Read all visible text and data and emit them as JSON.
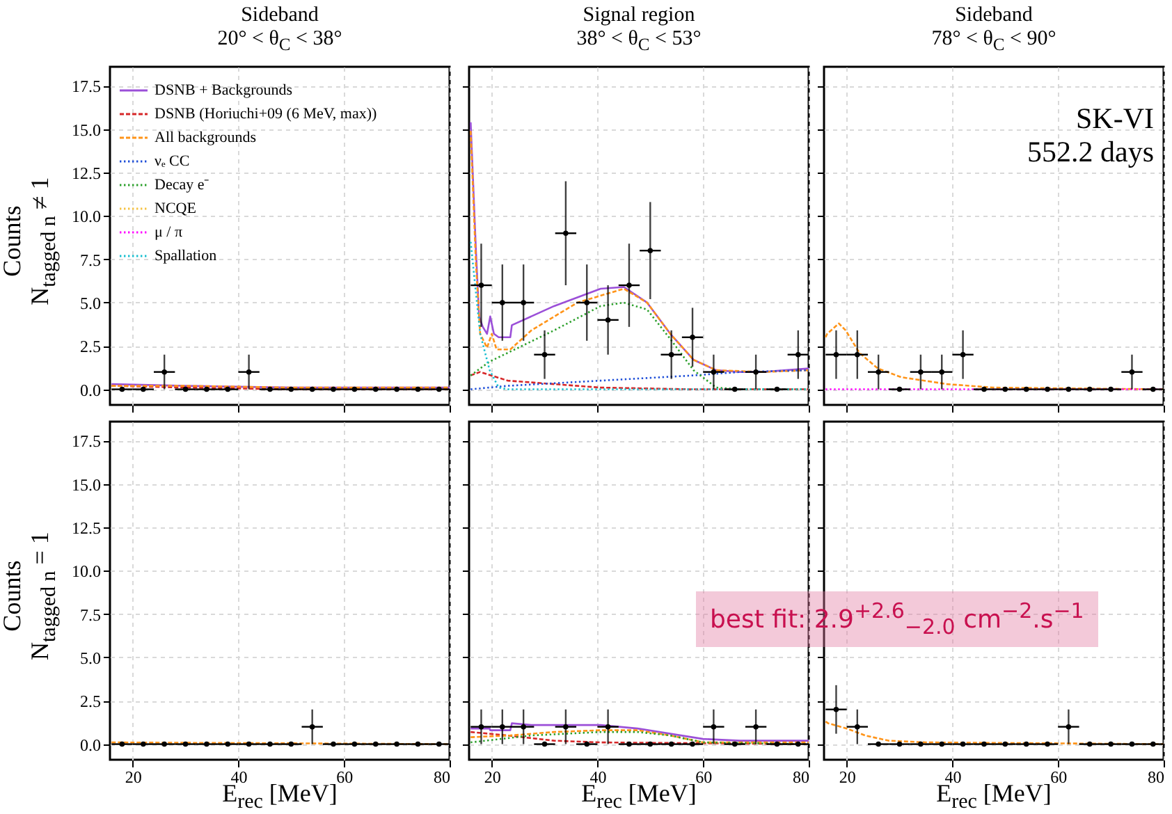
{
  "chart_data": [
    {
      "type": "line",
      "title": "Sideband",
      "subtitle": "20° < θ$_{C}$ < 38°",
      "ylabel": "Counts\nN$_{tagged n}$ ≠ 1",
      "xlim": [
        15.7,
        80
      ],
      "ylim": [
        -0.9,
        18.6
      ],
      "xticks": [
        20,
        40,
        60,
        80
      ],
      "yticks": [
        {
          "value": 0,
          "label": "0.0"
        },
        2.5,
        {
          "value": 5,
          "label": "5.0"
        },
        7.5,
        {
          "value": 10,
          "label": "10.0"
        },
        12.5,
        {
          "value": 15,
          "label": "15.0"
        },
        17.5
      ],
      "tick_labels": "y",
      "grid": true,
      "legend": "top left",
      "series": [
        {
          "name": "DSNB + Backgrounds",
          "type": "line",
          "color": "#9b4fd8",
          "line_style": "solid",
          "x": [
            16,
            30,
            50,
            80
          ],
          "values": [
            0.3,
            0.2,
            0.1,
            0.1
          ]
        },
        {
          "name": "DSNB (Horiuchi+09 (6 MeV, max))",
          "type": "line",
          "color": "#d62728",
          "line_style": "dashed",
          "x": [
            16,
            30,
            50,
            80
          ],
          "values": [
            0.2,
            0.1,
            0,
            0
          ]
        },
        {
          "name": "All backgrounds",
          "type": "line",
          "color": "#ff9419",
          "line_style": "dashed",
          "x": [
            16,
            30,
            50,
            80
          ],
          "values": [
            0.2,
            0.2,
            0.1,
            0.1
          ]
        },
        {
          "name": "νₑ CC",
          "type": "line",
          "color": "#1f4fd8",
          "line_style": "dotted"
        },
        {
          "name": "Decay e⁻",
          "type": "line",
          "color": "#2ca02c",
          "line_style": "dotted"
        },
        {
          "name": "NCQE",
          "type": "line",
          "color": "#f5c242",
          "line_style": "dotted"
        },
        {
          "name": "μ / π",
          "type": "line",
          "color": "#ff00ff",
          "line_style": "dotted"
        },
        {
          "name": "Spallation",
          "type": "line",
          "color": "#17becf",
          "line_style": "dotted"
        },
        {
          "type": "scatter",
          "color": "#000000",
          "marker": "circle",
          "x": [
            18,
            22,
            26,
            30,
            34,
            38,
            42,
            46,
            50,
            54,
            58,
            62,
            66,
            70,
            74,
            78
          ],
          "values": [
            0,
            0,
            1,
            0,
            0,
            0,
            1,
            0,
            0,
            0,
            0,
            0,
            0,
            0,
            0,
            0
          ],
          "errors": [
            null,
            null,
            1,
            null,
            null,
            null,
            1,
            null,
            null,
            null,
            null,
            null,
            null,
            null,
            null,
            null
          ],
          "xerrors": [
            2,
            2,
            2,
            2,
            2,
            2,
            2,
            2,
            2,
            2,
            2,
            2,
            2,
            2,
            2,
            2
          ]
        }
      ]
    },
    {
      "type": "line",
      "title": "Signal region",
      "subtitle": "38° < θ$_{C}$ < 53°",
      "xlim": [
        15.7,
        80
      ],
      "ylim": [
        -0.9,
        18.6
      ],
      "xticks": [
        20,
        40,
        60,
        80
      ],
      "yticks": [
        0,
        2.5,
        5,
        7.5,
        10,
        12.5,
        15,
        17.5
      ],
      "tick_labels": false,
      "grid": true,
      "series": [
        {
          "type": "line",
          "color": "#9b4fd8",
          "line_style": "solid",
          "x": [
            16,
            17,
            17.6,
            18.3,
            19.1,
            19.7,
            20.4,
            21.3,
            23.5,
            23.8,
            31.8,
            40.6,
            45,
            49.4,
            53.8,
            58.2,
            62.5,
            66.9,
            71.3,
            80
          ],
          "values": [
            15.4,
            8,
            4.2,
            3.6,
            3.2,
            4.2,
            3.2,
            3,
            3,
            3.7,
            4.8,
            5.8,
            5.9,
            5,
            3.2,
            1.7,
            1.1,
            1,
            1,
            1.2
          ]
        },
        {
          "type": "line",
          "color": "#d62728",
          "line_style": "dashed",
          "x": [
            16,
            17.8,
            23,
            31.8,
            40.6,
            58,
            80
          ],
          "values": [
            0.8,
            1,
            0.5,
            0.3,
            0.1,
            0,
            0
          ]
        },
        {
          "type": "line",
          "color": "#ff9419",
          "line_style": "dashed",
          "x": [
            16,
            17,
            17.8,
            19.1,
            20,
            20.9,
            23.5,
            27.5,
            36.2,
            45,
            49.4,
            53.8,
            58.2,
            62.5,
            71.3,
            80
          ],
          "values": [
            14.9,
            7.2,
            3.2,
            2.4,
            3.2,
            2.3,
            2.3,
            3.4,
            5,
            5.8,
            5,
            3.2,
            1.7,
            1.1,
            1,
            1.1
          ]
        },
        {
          "type": "line",
          "color": "#1f4fd8",
          "line_style": "dotted",
          "x": [
            16,
            23,
            40.6,
            58.2,
            67,
            80
          ],
          "values": [
            0,
            0.2,
            0.5,
            0.8,
            1,
            1.1
          ]
        },
        {
          "type": "line",
          "color": "#2ca02c",
          "line_style": "dotted",
          "x": [
            16,
            19.6,
            23,
            31.8,
            40.6,
            45,
            49.4,
            53.8,
            58.2,
            62.5,
            67,
            80
          ],
          "values": [
            0.8,
            1.6,
            2.1,
            3.4,
            4.8,
            5,
            4.6,
            2.9,
            1.1,
            0.1,
            0,
            0
          ]
        },
        {
          "type": "line",
          "color": "#17becf",
          "line_style": "dotted",
          "x": [
            16,
            17.8,
            19.6,
            21.3,
            23,
            80
          ],
          "values": [
            8.5,
            3.2,
            1.1,
            0.1,
            0,
            0
          ]
        },
        {
          "type": "scatter",
          "color": "#000000",
          "marker": "circle",
          "x": [
            18,
            22,
            26,
            30,
            34,
            38,
            42,
            46,
            50,
            54,
            58,
            62,
            66,
            70,
            74,
            78
          ],
          "values": [
            6,
            5,
            5,
            2,
            9,
            5,
            4,
            6,
            8,
            2,
            3,
            1,
            0,
            1,
            0,
            2
          ],
          "errors": [
            2.4,
            2.2,
            2.2,
            1.4,
            3,
            2.2,
            2,
            2.4,
            2.8,
            1.4,
            1.7,
            1,
            null,
            1,
            null,
            1.4
          ],
          "xerrors": [
            2,
            2,
            2,
            2,
            2,
            2,
            2,
            2,
            2,
            2,
            2,
            2,
            2,
            2,
            2,
            2
          ]
        }
      ]
    },
    {
      "type": "line",
      "title": "Sideband",
      "subtitle": "78° < θ$_{C}$ < 90°",
      "annotations": [
        "SK-VI",
        "552.2 days"
      ],
      "xlim": [
        15.7,
        80
      ],
      "ylim": [
        -0.9,
        18.6
      ],
      "xticks": [
        20,
        40,
        60,
        80
      ],
      "yticks": [
        0,
        2.5,
        5,
        7.5,
        10,
        12.5,
        15,
        17.5
      ],
      "tick_labels": false,
      "grid": true,
      "series": [
        {
          "type": "line",
          "color": "#ff9419",
          "line_style": "dashed",
          "x": [
            16,
            16.3,
            18.5,
            19.8,
            22.4,
            25.9,
            30.3,
            39,
            47.7,
            80
          ],
          "values": [
            3,
            3.2,
            3.8,
            3.4,
            2.1,
            1.2,
            0.7,
            0.3,
            0.1,
            0
          ]
        },
        {
          "type": "line",
          "color": "#ff00ff",
          "line_style": "dotted",
          "x": [
            16,
            80
          ],
          "values": [
            0,
            0
          ]
        },
        {
          "type": "scatter",
          "color": "#000000",
          "marker": "circle",
          "x": [
            18,
            22,
            26,
            30,
            34,
            38,
            42,
            46,
            50,
            54,
            58,
            62,
            66,
            70,
            74,
            78
          ],
          "values": [
            2,
            2,
            1,
            0,
            1,
            1,
            2,
            0,
            0,
            0,
            0,
            0,
            0,
            0,
            1,
            0
          ],
          "errors": [
            1.4,
            1.4,
            1,
            null,
            1,
            1,
            1.4,
            null,
            null,
            null,
            null,
            null,
            null,
            null,
            1,
            null
          ],
          "xerrors": [
            2,
            2,
            2,
            2,
            2,
            2,
            2,
            2,
            2,
            2,
            2,
            2,
            2,
            2,
            2,
            2
          ]
        }
      ]
    },
    {
      "type": "line",
      "xlabel": "E$_{rec}$ [MeV]",
      "ylabel": "Counts\nN$_{tagged n}$ = 1",
      "xlim": [
        15.7,
        80
      ],
      "ylim": [
        -0.9,
        18.6
      ],
      "xticks": [
        20,
        40,
        60,
        80
      ],
      "yticks": [
        {
          "value": 0,
          "label": "0.0"
        },
        2.5,
        {
          "value": 5,
          "label": "5.0"
        },
        7.5,
        {
          "value": 10,
          "label": "10.0"
        },
        12.5,
        {
          "value": 15,
          "label": "15.0"
        },
        17.5
      ],
      "grid": true,
      "series": [
        {
          "type": "line",
          "color": "#ff9419",
          "line_style": "dashed",
          "x": [
            16,
            80
          ],
          "values": [
            0.1,
            0
          ]
        },
        {
          "type": "scatter",
          "color": "#000000",
          "marker": "circle",
          "x": [
            18,
            22,
            26,
            30,
            34,
            38,
            42,
            46,
            50,
            54,
            58,
            62,
            66,
            70,
            74,
            78
          ],
          "values": [
            0,
            0,
            0,
            0,
            0,
            0,
            0,
            0,
            0,
            1,
            0,
            0,
            0,
            0,
            0,
            0
          ],
          "errors": [
            null,
            null,
            null,
            null,
            null,
            null,
            null,
            null,
            null,
            1,
            null,
            null,
            null,
            null,
            null,
            null
          ],
          "xerrors": [
            2,
            2,
            2,
            2,
            2,
            2,
            2,
            2,
            2,
            2,
            2,
            2,
            2,
            2,
            2,
            2
          ]
        }
      ]
    },
    {
      "type": "line",
      "xlabel": "E$_{rec}$ [MeV]",
      "annotations": [
        "best fit: 2.9$^{+2.6}$$_{−2.0}$ cm$^{−2}$.s$^{−1}$"
      ],
      "xlim": [
        15.7,
        80
      ],
      "ylim": [
        -0.9,
        18.6
      ],
      "xticks": [
        20,
        40,
        60,
        80
      ],
      "yticks": [
        0,
        2.5,
        5,
        7.5,
        10,
        12.5,
        15,
        17.5
      ],
      "tick_labels": "x",
      "grid": true,
      "series": [
        {
          "type": "line",
          "color": "#9b4fd8",
          "line_style": "solid",
          "x": [
            16,
            19.6,
            19.7,
            23.5,
            23.8,
            27.5,
            40.6,
            47.6,
            53.8,
            60,
            67,
            80
          ],
          "values": [
            0.9,
            0.9,
            0.8,
            0.8,
            1.2,
            1.1,
            1.1,
            0.9,
            0.6,
            0.3,
            0.2,
            0.2
          ]
        },
        {
          "type": "line",
          "color": "#d62728",
          "line_style": "dashed",
          "x": [
            16,
            23,
            31.8,
            40.6,
            80
          ],
          "values": [
            0.7,
            0.5,
            0.2,
            0.1,
            0
          ]
        },
        {
          "type": "line",
          "color": "#ff9419",
          "line_style": "dashed",
          "x": [
            16,
            23.5,
            31.8,
            40.6,
            47.6,
            53.8,
            60,
            80
          ],
          "values": [
            0.4,
            0.5,
            0.7,
            0.8,
            0.8,
            0.5,
            0.1,
            0.1
          ]
        },
        {
          "type": "line",
          "color": "#2ca02c",
          "line_style": "dotted",
          "x": [
            16,
            27.5,
            40.6,
            47.6,
            53.8,
            60,
            80
          ],
          "values": [
            0.1,
            0.5,
            0.7,
            0.7,
            0.5,
            0.1,
            0
          ]
        },
        {
          "type": "scatter",
          "color": "#000000",
          "marker": "circle",
          "x": [
            18,
            22,
            26,
            30,
            34,
            38,
            42,
            46,
            50,
            54,
            58,
            62,
            66,
            70,
            74,
            78
          ],
          "values": [
            1,
            1,
            1,
            0,
            1,
            0,
            1,
            0,
            0,
            0,
            0,
            1,
            0,
            1,
            0,
            0
          ],
          "errors": [
            1,
            1,
            1,
            null,
            1,
            null,
            1,
            null,
            null,
            null,
            null,
            1,
            null,
            1,
            null,
            null
          ],
          "xerrors": [
            2,
            2,
            2,
            2,
            2,
            2,
            2,
            2,
            2,
            2,
            2,
            2,
            2,
            2,
            2,
            2
          ]
        }
      ]
    },
    {
      "type": "line",
      "xlabel": "E$_{rec}$ [MeV]",
      "xlim": [
        15.7,
        80
      ],
      "ylim": [
        -0.9,
        18.6
      ],
      "xticks": [
        20,
        40,
        60,
        80
      ],
      "yticks": [
        0,
        2.5,
        5,
        7.5,
        10,
        12.5,
        15,
        17.5
      ],
      "tick_labels": "x",
      "grid": true,
      "series": [
        {
          "type": "line",
          "color": "#ff9419",
          "line_style": "dashed",
          "x": [
            16,
            16.5,
            20,
            23.5,
            27.9,
            35,
            80
          ],
          "values": [
            1.3,
            1.2,
            0.9,
            0.5,
            0.2,
            0.1,
            0
          ]
        },
        {
          "type": "scatter",
          "color": "#000000",
          "marker": "circle",
          "x": [
            18,
            22,
            26,
            30,
            34,
            38,
            42,
            46,
            50,
            54,
            58,
            62,
            66,
            70,
            74,
            78
          ],
          "values": [
            2,
            1,
            0,
            0,
            0,
            0,
            0,
            0,
            0,
            0,
            0,
            1,
            0,
            0,
            0,
            0
          ],
          "errors": [
            1.4,
            1,
            null,
            null,
            null,
            null,
            null,
            null,
            null,
            null,
            null,
            1,
            null,
            null,
            null,
            null
          ],
          "xerrors": [
            2,
            2,
            2,
            2,
            2,
            2,
            2,
            2,
            2,
            2,
            2,
            2,
            2,
            2,
            2,
            2
          ]
        }
      ]
    }
  ]
}
